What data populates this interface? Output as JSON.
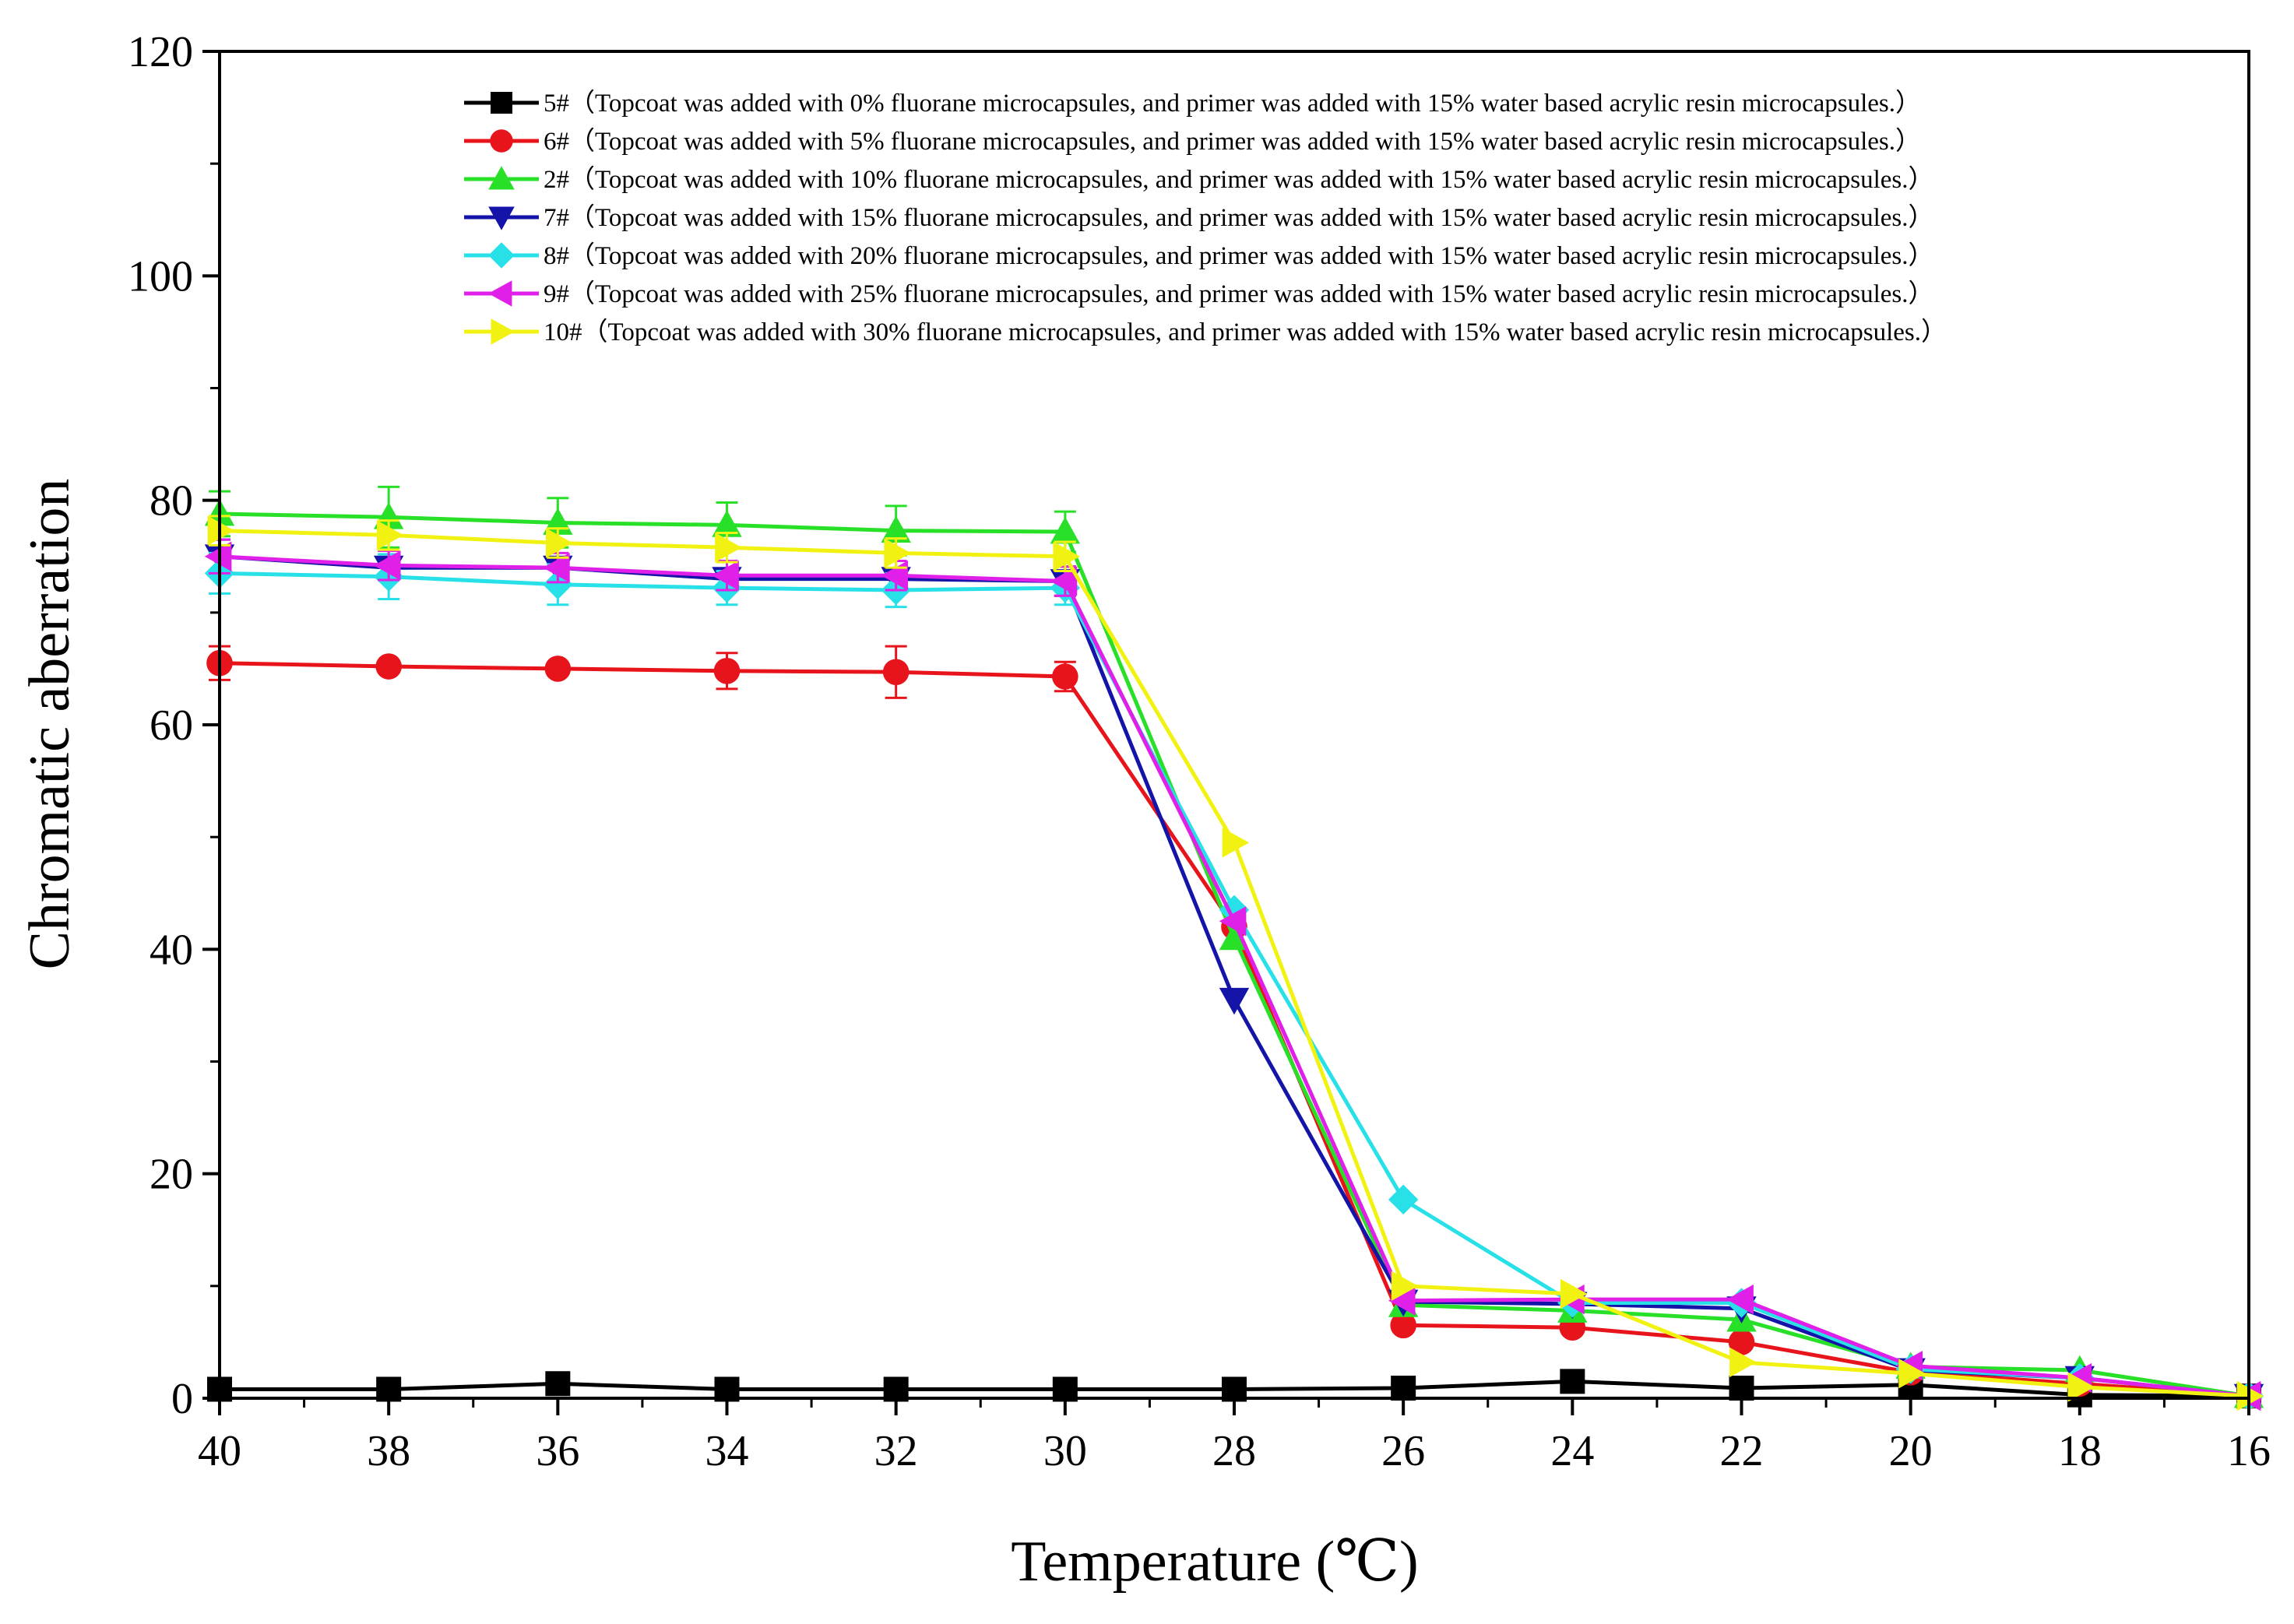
{
  "chart_data": {
    "type": "line",
    "title": "",
    "xlabel": "Temperature (℃)",
    "ylabel": "Chromatic aberration",
    "x": [
      40,
      38,
      36,
      34,
      32,
      30,
      28,
      26,
      24,
      22,
      20,
      18,
      16
    ],
    "xlim": [
      40,
      16
    ],
    "ylim": [
      0,
      120
    ],
    "x_ticks": [
      "40",
      "38",
      "36",
      "34",
      "32",
      "30",
      "28",
      "26",
      "24",
      "22",
      "20",
      "18",
      "16"
    ],
    "y_ticks": [
      "0",
      "20",
      "40",
      "60",
      "80",
      "100",
      "120"
    ],
    "grid": false,
    "legend_position": "top-right",
    "series": [
      {
        "name": "5#（Topcoat was added with 0% fluorane microcapsules, and primer was added with 15% water based acrylic resin microcapsules.）",
        "color": "#000000",
        "marker": "square",
        "values": [
          0.8,
          0.8,
          1.3,
          0.8,
          0.8,
          0.8,
          0.8,
          0.9,
          1.5,
          0.9,
          1.2,
          0.3,
          0.2
        ],
        "errors": [
          0,
          0,
          0.3,
          0,
          0,
          0,
          0,
          0,
          0.3,
          0,
          0,
          0,
          0
        ]
      },
      {
        "name": "6#（Topcoat was added with 5% fluorane microcapsules, and primer was added with 15% water based acrylic resin microcapsules.）",
        "color": "#e8141c",
        "marker": "circle",
        "values": [
          65.5,
          65.2,
          65.0,
          64.8,
          64.7,
          64.3,
          42.0,
          6.5,
          6.3,
          5.0,
          2.3,
          1.3,
          0.2
        ],
        "errors": [
          1.5,
          0,
          0,
          1.6,
          2.3,
          1.3,
          0,
          0,
          0,
          0,
          0,
          0,
          0
        ]
      },
      {
        "name": "2#（Topcoat was added with 10% fluorane microcapsules, and primer was added with 15% water based acrylic resin microcapsules.）",
        "color": "#28e028",
        "marker": "triangle-up",
        "values": [
          78.8,
          78.5,
          78.0,
          77.8,
          77.3,
          77.2,
          41.0,
          8.3,
          7.8,
          7.0,
          2.8,
          2.5,
          0.2
        ],
        "errors": [
          2.0,
          2.7,
          2.2,
          2.0,
          2.2,
          1.8,
          0,
          0,
          0,
          0,
          0,
          0,
          0
        ]
      },
      {
        "name": "7#（Topcoat was added with 15% fluorane microcapsules, and primer was added with 15% water based acrylic resin microcapsules.）",
        "color": "#1414a8",
        "marker": "triangle-down",
        "values": [
          75.0,
          74.0,
          74.0,
          73.0,
          73.0,
          72.8,
          35.5,
          8.6,
          8.4,
          8.0,
          2.5,
          1.8,
          0.2
        ],
        "errors": [
          1.5,
          0,
          0,
          0,
          0,
          1.3,
          0,
          0,
          0,
          0,
          0,
          0,
          0
        ]
      },
      {
        "name": "8#（Topcoat was added with 20% fluorane microcapsules, and primer was added with 15% water based acrylic resin microcapsules.）",
        "color": "#28e0e8",
        "marker": "diamond",
        "values": [
          73.5,
          73.2,
          72.5,
          72.2,
          72.0,
          72.2,
          43.5,
          17.7,
          8.5,
          8.5,
          2.6,
          1.8,
          0.2
        ],
        "errors": [
          1.8,
          2.0,
          1.8,
          1.5,
          1.5,
          1.5,
          0,
          0,
          0,
          0,
          0,
          0,
          0
        ]
      },
      {
        "name": "9#（Topcoat was added with 25% fluorane microcapsules, and primer was added with 15% water based acrylic resin microcapsules.）",
        "color": "#e020e8",
        "marker": "triangle-left",
        "values": [
          75.0,
          74.2,
          74.0,
          73.3,
          73.3,
          72.8,
          42.5,
          8.7,
          8.8,
          8.8,
          2.9,
          1.8,
          0.2
        ],
        "errors": [
          1.5,
          1.3,
          1.3,
          1.3,
          1.3,
          1.3,
          0,
          0,
          0,
          0,
          0,
          0,
          0
        ]
      },
      {
        "name": "10#（Topcoat was added with 30% fluorane microcapsules, and primer was added with 15% water based acrylic resin microcapsules.）",
        "color": "#f2f212",
        "marker": "triangle-right",
        "values": [
          77.3,
          76.9,
          76.2,
          75.8,
          75.3,
          75.0,
          49.5,
          10.0,
          9.3,
          3.2,
          2.2,
          1.0,
          0.2
        ],
        "errors": [
          1.3,
          1.3,
          1.3,
          1.3,
          1.3,
          1.3,
          0,
          0,
          0,
          0,
          0,
          0,
          0
        ]
      }
    ]
  }
}
